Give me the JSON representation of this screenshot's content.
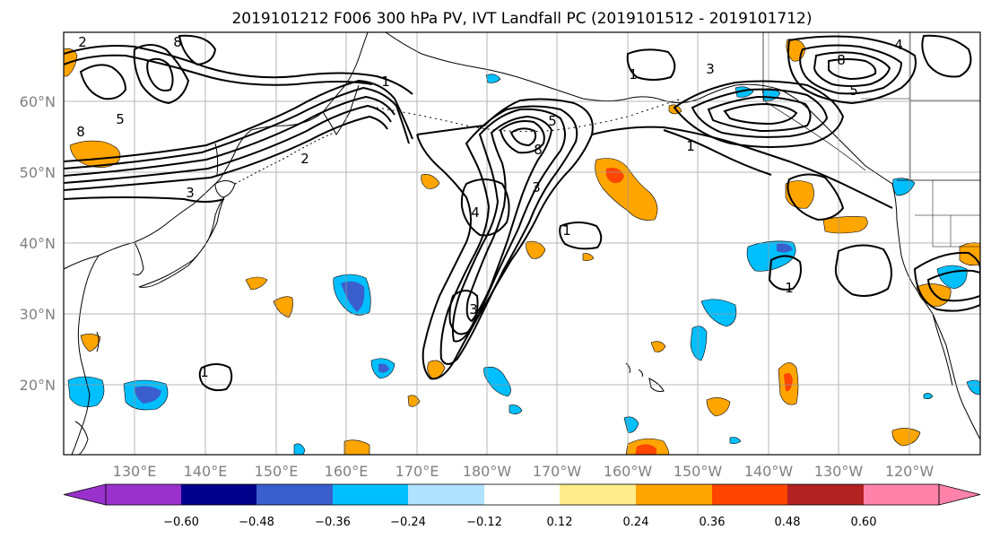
{
  "title": "2019101212 F006 300 hPa PV, IVT Landfall PC (2019101512 - 2019101712)",
  "lat_labels": [
    "60°N",
    "50°N",
    "40°N",
    "30°N",
    "20°N"
  ],
  "lon_labels": [
    "130°E",
    "140°E",
    "150°E",
    "160°E",
    "170°E",
    "180°W",
    "170°W",
    "160°W",
    "150°W",
    "140°W",
    "130°W",
    "120°W"
  ],
  "colorbar": {
    "colors": [
      "#9932CC",
      "#00008B",
      "#3A5FCD",
      "#00BFFF",
      "#B0E2FF",
      "#FFFFFF",
      "#FFEC8B",
      "#FFA500",
      "#FF4500",
      "#B22222",
      "#FF82AB"
    ],
    "tick_labels": [
      "−0.60",
      "−0.48",
      "−0.36",
      "−0.24",
      "−0.12",
      "0.12",
      "0.24",
      "0.36",
      "0.48",
      "0.60"
    ]
  },
  "contour_labels": [
    "2",
    "8",
    "5",
    "3",
    "8",
    "1",
    "2",
    "3",
    "5",
    "8",
    "3",
    "4",
    "1",
    "3",
    "8",
    "5",
    "4",
    "1",
    "1",
    "1",
    "1"
  ]
}
